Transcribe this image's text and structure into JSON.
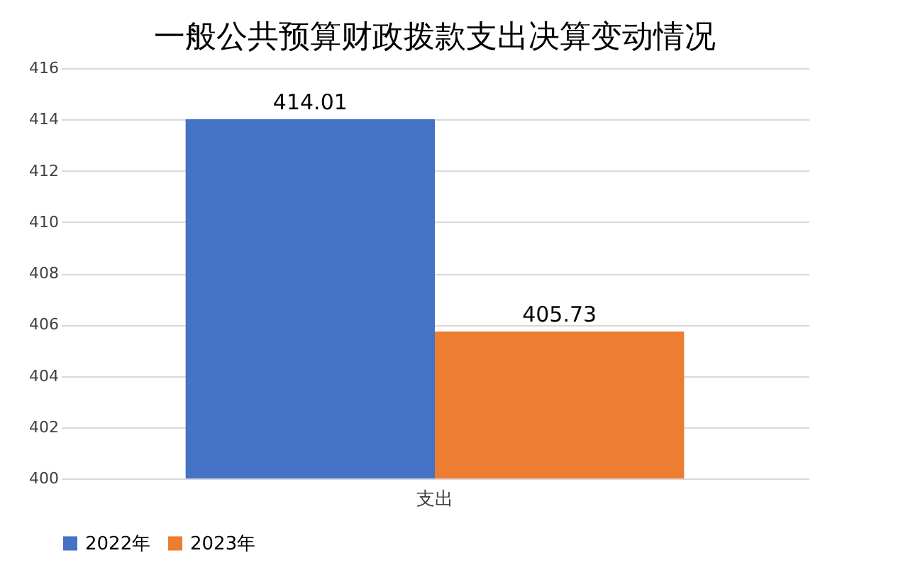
{
  "chart_data": {
    "type": "bar",
    "title": "一般公共预算财政拨款支出决算变动情况",
    "categories": [
      "支出"
    ],
    "series": [
      {
        "name": "2022年",
        "color": "#4472c4",
        "values": [
          414.01
        ]
      },
      {
        "name": "2023年",
        "color": "#ed7d31",
        "values": [
          405.73
        ]
      }
    ],
    "ylim": [
      400,
      416
    ],
    "yticks": [
      400,
      402,
      404,
      406,
      408,
      410,
      412,
      414,
      416
    ],
    "grid": "y",
    "legend": "bottom",
    "data_labels": true
  }
}
